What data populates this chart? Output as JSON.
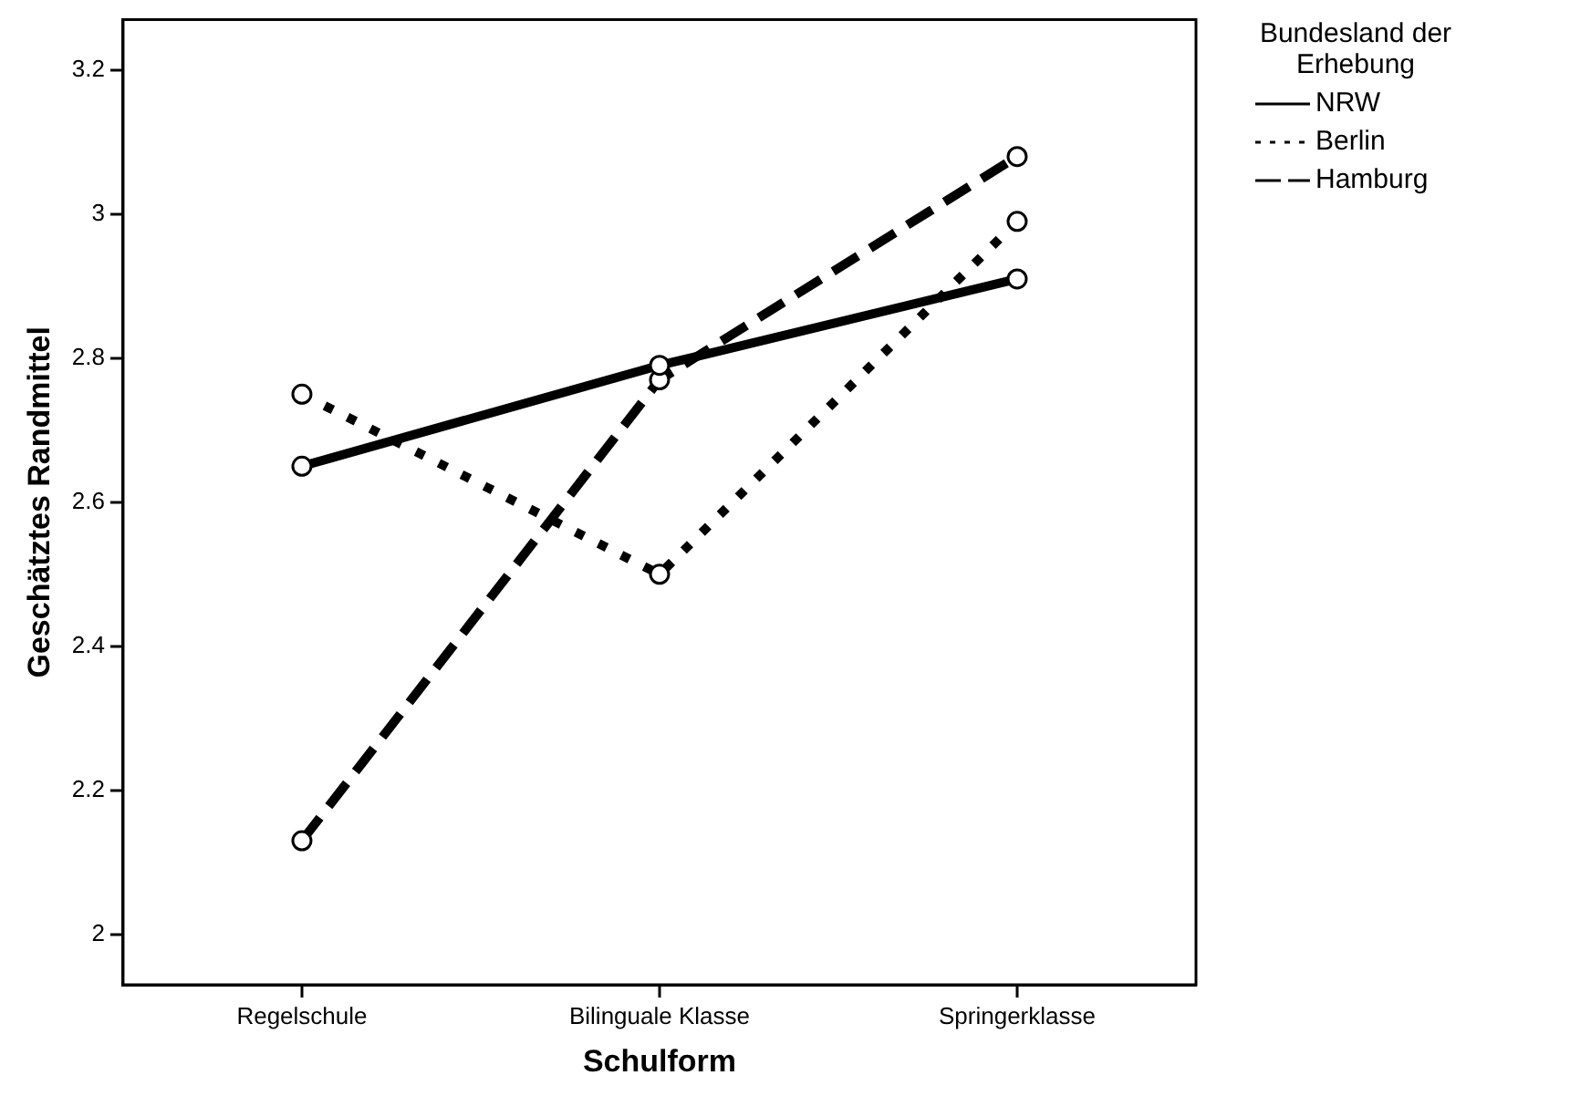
{
  "chart_data": {
    "type": "line",
    "xlabel": "Schulform",
    "ylabel": "Geschätztes Randmittel",
    "legend_title": "Bundesland der Erhebung",
    "categories": [
      "Regelschule",
      "Bilinguale Klasse",
      "Springerklasse"
    ],
    "series": [
      {
        "name": "NRW",
        "color": "#000000",
        "line_style": "solid",
        "values": [
          2.65,
          2.79,
          2.91
        ]
      },
      {
        "name": "Berlin",
        "color": "#000000",
        "line_style": "dotted",
        "values": [
          2.75,
          2.5,
          2.99
        ]
      },
      {
        "name": "Hamburg",
        "color": "#000000",
        "line_style": "dashed",
        "values": [
          2.13,
          2.77,
          3.08
        ]
      }
    ],
    "ylim": [
      1.93,
      3.27
    ],
    "yticks": [
      2,
      2.2,
      2.4,
      2.6,
      2.8,
      3,
      3.2
    ],
    "grid": false,
    "legend": "top right",
    "marker": "circle"
  }
}
